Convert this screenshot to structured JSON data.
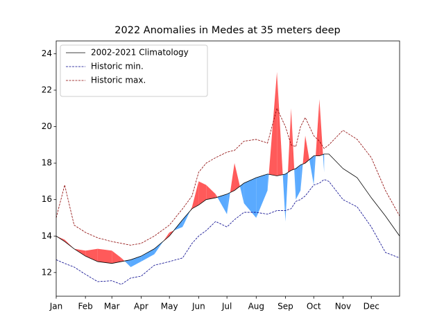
{
  "chart_data": {
    "type": "line",
    "title": "2022 Anomalies in Medes at 35 meters deep",
    "x": [
      1,
      10,
      20,
      32,
      45,
      60,
      70,
      80,
      91,
      105,
      121,
      135,
      145,
      152,
      160,
      170,
      182,
      190,
      200,
      213,
      225,
      235,
      244,
      250,
      255,
      260,
      265,
      274,
      280,
      285,
      290,
      305,
      320,
      335,
      350,
      365
    ],
    "series": [
      {
        "name": "2002-2021 Climatology",
        "color": "#000000",
        "linestyle": "solid",
        "values": [
          14.0,
          13.7,
          13.3,
          12.9,
          12.6,
          12.5,
          12.6,
          12.7,
          12.9,
          13.3,
          14.0,
          14.9,
          15.5,
          15.7,
          16.0,
          16.1,
          16.3,
          16.5,
          16.9,
          17.2,
          17.4,
          17.3,
          17.4,
          17.6,
          17.7,
          17.9,
          18.0,
          18.4,
          18.4,
          18.5,
          18.5,
          17.7,
          17.2,
          16.1,
          15.1,
          14.0
        ]
      },
      {
        "name": "Historic min.",
        "color": "#00008b",
        "linestyle": "dashed",
        "values": [
          12.7,
          12.5,
          12.3,
          11.9,
          11.5,
          11.55,
          11.35,
          11.7,
          11.8,
          12.4,
          12.6,
          12.8,
          13.6,
          14.0,
          14.3,
          14.8,
          14.5,
          14.9,
          15.3,
          15.3,
          15.2,
          15.4,
          15.4,
          15.5,
          15.9,
          16.0,
          16.2,
          16.8,
          16.9,
          17.1,
          17.0,
          16.0,
          15.6,
          14.5,
          13.1,
          12.8
        ]
      },
      {
        "name": "Historic max.",
        "color": "#8b0000",
        "linestyle": "dashed",
        "values": [
          15.0,
          16.8,
          14.6,
          14.2,
          13.9,
          13.7,
          13.6,
          13.5,
          13.6,
          14.0,
          14.6,
          15.5,
          16.2,
          17.5,
          18.0,
          18.3,
          18.6,
          18.7,
          19.2,
          19.3,
          19.1,
          21.0,
          20.0,
          19.0,
          18.9,
          20.0,
          20.5,
          19.5,
          19.2,
          18.8,
          19.0,
          19.8,
          19.3,
          18.3,
          16.5,
          15.1
        ]
      }
    ],
    "observed": {
      "above_color": "#ff5a5a",
      "below_color": "#5aaaff",
      "values": [
        14.0,
        13.8,
        13.3,
        13.2,
        13.3,
        13.2,
        12.8,
        12.3,
        12.6,
        13.0,
        14.2,
        14.5,
        15.6,
        17.0,
        16.8,
        16.3,
        15.2,
        18.0,
        15.8,
        15.0,
        16.5,
        23.0,
        14.8,
        21.0,
        16.0,
        16.5,
        19.5,
        16.8,
        21.5,
        17.5,
        null,
        null,
        null,
        null,
        null,
        null
      ]
    },
    "xlim": [
      1,
      365
    ],
    "xticks": [
      {
        "value": 1,
        "label": "Jan"
      },
      {
        "value": 32,
        "label": "Feb"
      },
      {
        "value": 60,
        "label": "Mar"
      },
      {
        "value": 91,
        "label": "Apr"
      },
      {
        "value": 121,
        "label": "May"
      },
      {
        "value": 152,
        "label": "Jun"
      },
      {
        "value": 182,
        "label": "Jul"
      },
      {
        "value": 213,
        "label": "Aug"
      },
      {
        "value": 244,
        "label": "Sep"
      },
      {
        "value": 274,
        "label": "Oct"
      },
      {
        "value": 305,
        "label": "Nov"
      },
      {
        "value": 335,
        "label": "Dec"
      }
    ],
    "ylim": [
      10.7,
      24.7
    ],
    "yticks": [
      12,
      14,
      16,
      18,
      20,
      22,
      24
    ],
    "legend": "upper left"
  }
}
